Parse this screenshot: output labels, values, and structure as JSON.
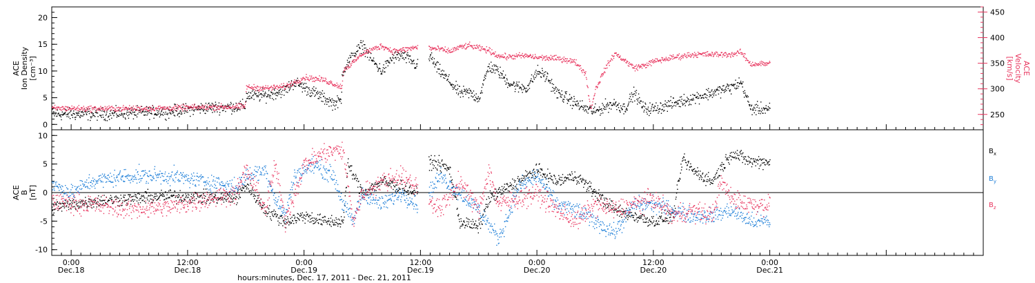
{
  "colors": {
    "black": "#000000",
    "blue": "#1f7fd8",
    "red": "#e8365f"
  },
  "time_axis": {
    "label": "hours:minutes, Dec. 17, 2011 - Dec. 21, 2011",
    "range_hours": [
      -2,
      94
    ],
    "major_ticks": [
      {
        "hour": 0,
        "time": "0:00",
        "day": "Dec.18"
      },
      {
        "hour": 12,
        "time": "12:00",
        "day": "Dec.18"
      },
      {
        "hour": 24,
        "time": "0:00",
        "day": "Dec.19"
      },
      {
        "hour": 36,
        "time": "12:00",
        "day": "Dec.19"
      },
      {
        "hour": 48,
        "time": "0:00",
        "day": "Dec.20"
      },
      {
        "hour": 60,
        "time": "12:00",
        "day": "Dec.20"
      },
      {
        "hour": 72,
        "time": "0:00",
        "day": "Dec.21"
      }
    ],
    "minor_tick_step_hours": 1
  },
  "chart_data": [
    {
      "type": "scatter",
      "name": "top-panel",
      "ylabel_left": [
        "ACE",
        "Ion Density",
        "[cm⁻³]"
      ],
      "ylabel_right": [
        "ACE",
        "Velocity",
        "[km/s]"
      ],
      "y_left_range": [
        -1,
        22
      ],
      "y_left_ticks": [
        0,
        5,
        10,
        15,
        20
      ],
      "y_right_range": [
        220,
        460
      ],
      "y_right_ticks": [
        250,
        300,
        350,
        400,
        450
      ],
      "series": [
        {
          "axis": "left",
          "color": "black",
          "anchors": [
            [
              -2,
              2
            ],
            [
              2,
              2
            ],
            [
              6,
              2.2
            ],
            [
              10,
              2.5
            ],
            [
              14,
              3.2
            ],
            [
              17.9,
              3.5
            ],
            [
              18,
              5.5
            ],
            [
              20,
              5.5
            ],
            [
              22,
              6.5
            ],
            [
              23,
              8
            ],
            [
              25,
              6
            ],
            [
              27,
              4
            ],
            [
              27.8,
              4.5
            ],
            [
              27.9,
              10
            ],
            [
              29,
              13
            ],
            [
              30,
              15
            ],
            [
              31,
              12
            ],
            [
              32,
              10
            ],
            [
              33,
              12.5
            ],
            [
              34,
              13
            ],
            [
              35,
              12
            ],
            [
              35.6,
              11
            ],
            [
              36.8,
              12
            ],
            [
              37,
              13
            ],
            [
              37.5,
              11
            ],
            [
              39,
              8
            ],
            [
              40,
              6
            ],
            [
              41,
              6
            ],
            [
              42,
              5
            ],
            [
              43,
              11
            ],
            [
              44,
              10
            ],
            [
              45,
              8
            ],
            [
              46,
              7
            ],
            [
              47,
              7
            ],
            [
              48,
              10
            ],
            [
              49,
              9
            ],
            [
              50,
              6
            ],
            [
              52,
              4
            ],
            [
              53,
              3
            ],
            [
              54,
              2.5
            ],
            [
              55,
              3.5
            ],
            [
              56,
              4
            ],
            [
              57,
              3
            ],
            [
              58,
              6
            ],
            [
              59,
              3
            ],
            [
              60,
              3
            ],
            [
              62,
              4
            ],
            [
              64,
              5
            ],
            [
              66,
              6
            ],
            [
              68,
              7
            ],
            [
              69,
              8
            ],
            [
              70,
              3
            ],
            [
              72,
              3
            ]
          ],
          "gaps": [
            [
              35.7,
              36.8
            ]
          ],
          "noise": 0.8
        },
        {
          "axis": "right",
          "color": "red",
          "anchors": [
            [
              -2,
              263
            ],
            [
              2,
              262
            ],
            [
              6,
              262
            ],
            [
              10,
              263
            ],
            [
              14,
              265
            ],
            [
              17.9,
              266
            ],
            [
              18,
              304
            ],
            [
              20,
              302
            ],
            [
              22,
              305
            ],
            [
              24,
              323
            ],
            [
              26,
              318
            ],
            [
              27.9,
              304
            ],
            [
              28,
              338
            ],
            [
              29,
              352
            ],
            [
              30,
              370
            ],
            [
              32,
              385
            ],
            [
              33,
              375
            ],
            [
              34,
              376
            ],
            [
              35,
              380
            ],
            [
              35.6,
              382
            ],
            [
              36.8,
              383
            ],
            [
              37,
              380
            ],
            [
              38,
              378
            ],
            [
              39,
              374
            ],
            [
              40,
              382
            ],
            [
              41,
              385
            ],
            [
              42,
              380
            ],
            [
              43,
              376
            ],
            [
              44,
              365
            ],
            [
              45,
              363
            ],
            [
              46,
              365
            ],
            [
              47,
              365
            ],
            [
              48,
              362
            ],
            [
              50,
              360
            ],
            [
              51,
              358
            ],
            [
              52,
              352
            ],
            [
              53,
              330
            ],
            [
              53.5,
              260
            ],
            [
              54,
              300
            ],
            [
              55,
              340
            ],
            [
              56,
              370
            ],
            [
              57,
              356
            ],
            [
              58,
              342
            ],
            [
              59,
              346
            ],
            [
              60,
              354
            ],
            [
              62,
              362
            ],
            [
              64,
              368
            ],
            [
              66,
              368
            ],
            [
              68,
              368
            ],
            [
              69,
              372
            ],
            [
              70,
              349
            ],
            [
              72,
              350
            ]
          ],
          "gaps": [
            [
              35.7,
              36.8
            ]
          ],
          "noise": 4
        }
      ]
    },
    {
      "type": "scatter",
      "name": "bottom-panel",
      "ylabel_left": [
        "ACE",
        "B",
        "[nT]"
      ],
      "y_range": [
        -11,
        11
      ],
      "y_ticks": [
        -10,
        -5,
        0,
        5,
        10
      ],
      "zero_line": true,
      "legend": [
        {
          "label": "B",
          "sub": "x",
          "color": "black"
        },
        {
          "label": "B",
          "sub": "y",
          "color": "blue"
        },
        {
          "label": "B",
          "sub": "z",
          "color": "red"
        }
      ],
      "series": [
        {
          "name": "Bx",
          "color": "black",
          "anchors": [
            [
              -2,
              -2.5
            ],
            [
              2,
              -1.5
            ],
            [
              6,
              -1
            ],
            [
              10,
              -0.5
            ],
            [
              14,
              -0.8
            ],
            [
              17,
              -1
            ],
            [
              18,
              1.5
            ],
            [
              20,
              -3
            ],
            [
              22,
              -5
            ],
            [
              24,
              -4
            ],
            [
              26,
              -5
            ],
            [
              28,
              -5
            ],
            [
              28.5,
              5
            ],
            [
              30,
              0
            ],
            [
              32,
              2
            ],
            [
              34,
              1
            ],
            [
              35.6,
              0
            ],
            [
              37,
              5.5
            ],
            [
              38,
              5
            ],
            [
              39,
              4
            ],
            [
              40,
              -5
            ],
            [
              42,
              -6
            ],
            [
              43,
              -1
            ],
            [
              44,
              0
            ],
            [
              46,
              2
            ],
            [
              48,
              4
            ],
            [
              50,
              2
            ],
            [
              52,
              3
            ],
            [
              54,
              0
            ],
            [
              56,
              -3
            ],
            [
              58,
              -4
            ],
            [
              60,
              -5
            ],
            [
              62,
              -4
            ],
            [
              63,
              6
            ],
            [
              64,
              4
            ],
            [
              66,
              2
            ],
            [
              68,
              7
            ],
            [
              70,
              5.5
            ],
            [
              72,
              5.5
            ]
          ],
          "gaps": [
            [
              35.7,
              36.8
            ]
          ],
          "noise": 0.8
        },
        {
          "name": "By",
          "color": "blue",
          "anchors": [
            [
              -2,
              1.5
            ],
            [
              0,
              0
            ],
            [
              2,
              2
            ],
            [
              6,
              3
            ],
            [
              10,
              3
            ],
            [
              14,
              2
            ],
            [
              17,
              1
            ],
            [
              18,
              3
            ],
            [
              20,
              4
            ],
            [
              21,
              -1
            ],
            [
              22,
              -4
            ],
            [
              23,
              3
            ],
            [
              25,
              5
            ],
            [
              27,
              3
            ],
            [
              28,
              -2
            ],
            [
              29,
              -5
            ],
            [
              30,
              0
            ],
            [
              32,
              -2
            ],
            [
              34,
              0
            ],
            [
              35.6,
              -2
            ],
            [
              36.8,
              0
            ],
            [
              38,
              3
            ],
            [
              40,
              0
            ],
            [
              42,
              -3
            ],
            [
              44,
              -8
            ],
            [
              45,
              -4
            ],
            [
              46,
              1
            ],
            [
              48,
              3
            ],
            [
              50,
              -2
            ],
            [
              52,
              -3
            ],
            [
              54,
              -5
            ],
            [
              56,
              -7
            ],
            [
              58,
              -2
            ],
            [
              60,
              -2
            ],
            [
              62,
              -3
            ],
            [
              64,
              -4
            ],
            [
              66,
              -4
            ],
            [
              68,
              -3
            ],
            [
              70,
              -5
            ],
            [
              72,
              -5
            ]
          ],
          "gaps": [
            [
              35.7,
              36.8
            ]
          ],
          "noise": 1.0
        },
        {
          "name": "Bz",
          "color": "red",
          "anchors": [
            [
              -2,
              -1.5
            ],
            [
              2,
              -2
            ],
            [
              6,
              -2.8
            ],
            [
              10,
              -2.5
            ],
            [
              14,
              -1
            ],
            [
              17,
              0
            ],
            [
              18,
              4
            ],
            [
              20,
              -3
            ],
            [
              21,
              5
            ],
            [
              22,
              -5
            ],
            [
              24,
              5
            ],
            [
              26,
              7
            ],
            [
              28,
              7.5
            ],
            [
              29,
              -5
            ],
            [
              30,
              0
            ],
            [
              32,
              2
            ],
            [
              34,
              3
            ],
            [
              35.6,
              1
            ],
            [
              36.8,
              -1
            ],
            [
              38,
              -3
            ],
            [
              40,
              2
            ],
            [
              42,
              -3
            ],
            [
              43,
              4
            ],
            [
              44,
              -2
            ],
            [
              46,
              -1
            ],
            [
              48,
              0
            ],
            [
              50,
              -3
            ],
            [
              52,
              -5
            ],
            [
              54,
              -2
            ],
            [
              56,
              -3
            ],
            [
              58,
              -2
            ],
            [
              60,
              -1
            ],
            [
              62,
              -4
            ],
            [
              64,
              -3
            ],
            [
              66,
              -4
            ],
            [
              67,
              2
            ],
            [
              68,
              -1
            ],
            [
              70,
              -2
            ],
            [
              72,
              -2
            ]
          ],
          "gaps": [
            [
              35.7,
              36.8
            ]
          ],
          "noise": 1.2
        }
      ]
    }
  ]
}
